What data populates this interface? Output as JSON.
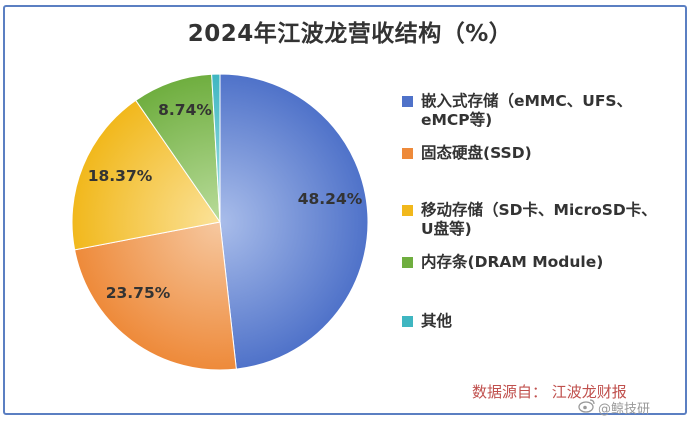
{
  "title": "2024年江波龙营收结构（%）",
  "chart_data": {
    "type": "pie",
    "title": "2024年江波龙营收结构（%）",
    "slices": [
      {
        "label": "嵌入式存储（eMMC、UFS、eMCP等)",
        "legend_lines": [
          "嵌入式存储（eMMC、UFS、",
          "eMCP等)"
        ],
        "value": 48.24,
        "value_label": "48.24%",
        "color": "#4f72c9",
        "color_light": "#a9bdea"
      },
      {
        "label": "固态硬盘(SSD)",
        "legend_lines": [
          "固态硬盘(SSD)"
        ],
        "value": 23.75,
        "value_label": "23.75%",
        "color": "#ee8a3a",
        "color_light": "#f6c8a0"
      },
      {
        "label": "移动存储（SD卡、MicroSD卡、U盘等)",
        "legend_lines": [
          "移动存储（SD卡、MicroSD卡、",
          "U盘等)"
        ],
        "value": 18.37,
        "value_label": "18.37%",
        "color": "#f1b81c",
        "color_light": "#fbe299"
      },
      {
        "label": "内存条(DRAM Module)",
        "legend_lines": [
          "内存条(DRAM Module)"
        ],
        "value": 8.74,
        "value_label": "8.74%",
        "color": "#6fae3f",
        "color_light": "#b9dc9b"
      },
      {
        "label": "其他",
        "legend_lines": [
          "其他"
        ],
        "value": 0.9,
        "value_label": "",
        "color": "#3fb6c1",
        "color_light": "#a8e2e7"
      }
    ],
    "legend_position": "right"
  },
  "source": "数据源自：  江波龙财报",
  "watermark": "@鲸技研"
}
